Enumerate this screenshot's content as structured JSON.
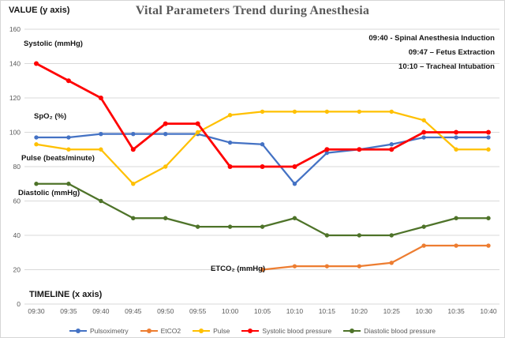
{
  "series_labels": {
    "systolic": "Systolic (mmHg)",
    "spo2": "SpO₂ (%)",
    "pulse": "Pulse (beats/minute)",
    "diastolic": "Diastolic (mmHg)",
    "etco2": "ETCO₂ (mmHg)"
  },
  "colors": {
    "grid": "#d9d9d9",
    "tick_text": "#595959",
    "title_text": "#595959",
    "label_text": "#151515"
  },
  "chart_data": {
    "type": "line",
    "title": "Vital Parameters Trend during Anesthesia",
    "ylabel": "VALUE (y axis)",
    "xlabel": "TIMELINE (x axis)",
    "ylim": [
      0,
      160
    ],
    "y_tick_step": 20,
    "grid": true,
    "legend_position": "bottom",
    "annotations": [
      "09:40 - Spinal Anesthesia Induction",
      "09:47 – Fetus Extraction",
      "10:10 – Tracheal Intubation"
    ],
    "categories": [
      "09:30",
      "09:35",
      "09:40",
      "09:45",
      "09:50",
      "09:55",
      "10:00",
      "10:05",
      "10:10",
      "10:15",
      "10:20",
      "10:25",
      "10:30",
      "10:35",
      "10:40"
    ],
    "series": [
      {
        "name": "Pulsoximetry",
        "color": "#4472C4",
        "values": [
          97,
          97,
          99,
          99,
          99,
          99,
          94,
          93,
          70,
          88,
          90,
          93,
          97,
          97,
          97
        ]
      },
      {
        "name": "EtCO2",
        "color": "#ED7D31",
        "values": [
          null,
          null,
          null,
          null,
          null,
          null,
          null,
          20,
          22,
          22,
          22,
          24,
          34,
          34,
          34
        ]
      },
      {
        "name": "Pulse",
        "color": "#FFC000",
        "values": [
          93,
          90,
          90,
          70,
          80,
          100,
          110,
          112,
          112,
          112,
          112,
          112,
          107,
          90,
          90
        ]
      },
      {
        "name": "Systolic blood pressure",
        "color": "#FF0000",
        "values": [
          140,
          130,
          120,
          90,
          105,
          105,
          80,
          80,
          80,
          90,
          90,
          90,
          100,
          100,
          100
        ]
      },
      {
        "name": "Diastolic blood pressure",
        "color": "#4E7329",
        "values": [
          70,
          70,
          60,
          50,
          50,
          45,
          45,
          45,
          50,
          40,
          40,
          40,
          45,
          50,
          50
        ]
      }
    ]
  }
}
